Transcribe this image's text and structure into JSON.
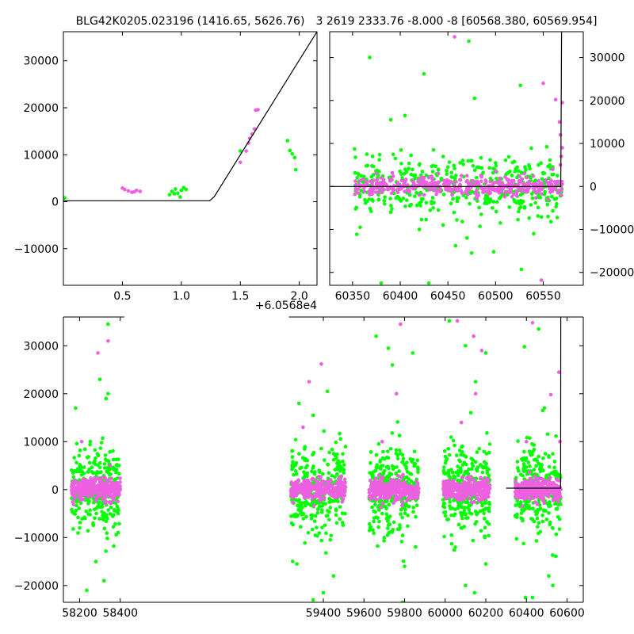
{
  "colors": {
    "green": "#00ff00",
    "magenta": "#ee5fe1",
    "model": "#000000"
  },
  "figure": {
    "title_left": "BLG42K0205.023196 (1416.65, 5626.76)",
    "title_right": "3 2619 2333.76 -8.000 -8 [60568.380, 60569.954]"
  },
  "chart_data": [
    {
      "id": "zoom-left",
      "type": "scatter",
      "title": "BLG42K0205.023196 (1416.65, 5626.76)",
      "xlim": [
        0.0,
        2.15
      ],
      "ylim": [
        -17800,
        36200
      ],
      "x_offset_label": "+6.0568e4",
      "x_ticks": [
        0.5,
        1.0,
        1.5,
        2.0
      ],
      "x_tick_labels": [
        "0.5",
        "1.0",
        "1.5",
        "2.0"
      ],
      "y_ticks": [
        -10000,
        0,
        10000,
        20000,
        30000
      ],
      "y_tick_labels": [
        "−10000",
        "0",
        "10000",
        "20000",
        "30000"
      ],
      "series": [
        {
          "color": "magenta",
          "points": [
            [
              0.5,
              2900
            ],
            [
              0.52,
              2600
            ],
            [
              0.55,
              2300
            ],
            [
              0.58,
              2000
            ],
            [
              0.6,
              2100
            ],
            [
              0.62,
              2400
            ],
            [
              0.65,
              2200
            ],
            [
              1.55,
              10800
            ],
            [
              1.57,
              12500
            ],
            [
              1.58,
              13500
            ],
            [
              1.6,
              14400
            ],
            [
              1.62,
              15500
            ],
            [
              1.63,
              19500
            ],
            [
              1.65,
              19600
            ],
            [
              1.5,
              8400
            ]
          ]
        },
        {
          "color": "green",
          "points": [
            [
              0.01,
              800
            ],
            [
              0.9,
              1500
            ],
            [
              0.92,
              2200
            ],
            [
              0.95,
              2700
            ],
            [
              0.97,
              1800
            ],
            [
              1.0,
              2400
            ],
            [
              1.02,
              3000
            ],
            [
              1.04,
              2600
            ],
            [
              0.99,
              1000
            ],
            [
              1.9,
              13000
            ],
            [
              1.92,
              10900
            ],
            [
              1.94,
              10200
            ],
            [
              1.96,
              9400
            ],
            [
              1.97,
              6800
            ],
            [
              1.5,
              10800
            ],
            [
              0.94,
              1700
            ]
          ]
        }
      ],
      "model": [
        [
          0.0,
          200
        ],
        [
          1.24,
          200
        ],
        [
          1.28,
          1100
        ],
        [
          2.15,
          36200
        ]
      ]
    },
    {
      "id": "season-right",
      "type": "scatter",
      "title": "3 2619 2333.76 -8.000 -8 [60568.380, 60569.954]",
      "xlim": [
        60326,
        60592
      ],
      "ylim": [
        -23000,
        36000
      ],
      "x_ticks": [
        60350,
        60400,
        60450,
        60500,
        60550
      ],
      "x_tick_labels": [
        "60350",
        "60400",
        "60450",
        "60500",
        "60550"
      ],
      "y_ticks": [
        -20000,
        -10000,
        0,
        10000,
        20000,
        30000
      ],
      "y_tick_labels": [
        "−20000",
        "−10000",
        "0",
        "10000",
        "20000",
        "30000"
      ],
      "y_axis_side": "right",
      "series": [
        {
          "color": "green",
          "points": [
            [
              60368,
              30000
            ],
            [
              60425,
              26200
            ],
            [
              60472,
              33800
            ],
            [
              60390,
              15500
            ],
            [
              60405,
              16500
            ],
            [
              60435,
              8500
            ],
            [
              60478,
              20500
            ],
            [
              60526,
              23500
            ],
            [
              60358,
              -9500
            ],
            [
              60380,
              -22500
            ],
            [
              60430,
              -22500
            ],
            [
              60458,
              -13800
            ],
            [
              60475,
              -15500
            ],
            [
              60498,
              -15200
            ],
            [
              60527,
              -19300
            ],
            [
              60540,
              -11000
            ],
            [
              60555,
              -7000
            ],
            [
              60420,
              -10000
            ],
            [
              60445,
              -9000
            ],
            [
              60390,
              -6000
            ],
            [
              60505,
              -8500
            ],
            [
              60470,
              -12000
            ],
            [
              60485,
              -6500
            ],
            [
              60365,
              -3500
            ],
            [
              60410,
              -4500
            ],
            [
              60440,
              -5500
            ],
            [
              60365,
              7500
            ],
            [
              60395,
              6500
            ],
            [
              60420,
              5000
            ],
            [
              60450,
              4500
            ],
            [
              60475,
              6000
            ],
            [
              60500,
              5500
            ],
            [
              60515,
              3500
            ],
            [
              60535,
              5000
            ],
            [
              60550,
              3000
            ],
            [
              60560,
              4500
            ],
            [
              60410,
              -2000
            ],
            [
              60460,
              -3000
            ],
            [
              60520,
              -3500
            ],
            [
              60545,
              -2500
            ]
          ]
        },
        {
          "color": "magenta",
          "points": [
            [
              60457,
              34800
            ],
            [
              60550,
              24000
            ],
            [
              60563,
              20200
            ],
            [
              60570,
              19500
            ],
            [
              60548,
              -21800
            ],
            [
              60567,
              15000
            ],
            [
              60568,
              12000
            ],
            [
              60570,
              9000
            ],
            [
              60569,
              7000
            ],
            [
              60568,
              5000
            ],
            [
              60440,
              3000
            ],
            [
              60470,
              2500
            ],
            [
              60500,
              3500
            ],
            [
              60530,
              3000
            ],
            [
              60560,
              4000
            ],
            [
              60380,
              2000
            ],
            [
              60420,
              -2000
            ],
            [
              60480,
              -2500
            ],
            [
              60510,
              -1500
            ],
            [
              60555,
              -3000
            ]
          ]
        }
      ],
      "band": {
        "x_start": 60352,
        "x_end": 60570,
        "spread": 2500
      },
      "model": [
        [
          60326,
          0
        ],
        [
          60568.4,
          0
        ],
        [
          60569.2,
          36000
        ]
      ]
    },
    {
      "id": "full-bottom",
      "type": "scatter",
      "xlim": [
        58120,
        60680
      ],
      "ylim": [
        -23500,
        36000
      ],
      "x_ticks": [
        58200,
        58400,
        59400,
        59600,
        59800,
        60000,
        60200,
        60400,
        60600
      ],
      "x_tick_labels": [
        "58200",
        "58400",
        "59400",
        "59600",
        "59800",
        "60000",
        "60200",
        "60400",
        "60600"
      ],
      "y_ticks": [
        -20000,
        -10000,
        0,
        10000,
        20000,
        30000
      ],
      "y_tick_labels": [
        "−20000",
        "−10000",
        "0",
        "10000",
        "20000",
        "30000"
      ],
      "break": [
        58420,
        59230
      ],
      "seasons": [
        [
          58160,
          58400
        ],
        [
          59240,
          59510
        ],
        [
          59625,
          59870
        ],
        [
          59990,
          60220
        ],
        [
          60345,
          60570
        ]
      ],
      "series": [
        {
          "color": "magenta",
          "points": [
            [
              58350,
              5000
            ],
            [
              58290,
              28500
            ],
            [
              58340,
              31000
            ],
            [
              58210,
              10000
            ],
            [
              59390,
              26200
            ],
            [
              59330,
              22500
            ],
            [
              59300,
              13000
            ],
            [
              59780,
              34500
            ],
            [
              59760,
              20000
            ],
            [
              59690,
              10000
            ],
            [
              60060,
              35200
            ],
            [
              60140,
              32000
            ],
            [
              60180,
              29000
            ],
            [
              60150,
              20000
            ],
            [
              60080,
              14000
            ],
            [
              60430,
              34800
            ],
            [
              60560,
              24500
            ],
            [
              60520,
              19800
            ],
            [
              60565,
              10000
            ],
            [
              60400,
              10000
            ]
          ]
        },
        {
          "color": "green",
          "points": [
            [
              58340,
              34500
            ],
            [
              58300,
              23000
            ],
            [
              58330,
              19000
            ],
            [
              58340,
              20000
            ],
            [
              58180,
              17000
            ],
            [
              58200,
              -8000
            ],
            [
              58235,
              -21000
            ],
            [
              58280,
              -15000
            ],
            [
              58320,
              -19000
            ],
            [
              59280,
              18000
            ],
            [
              59420,
              20500
            ],
            [
              59350,
              15500
            ],
            [
              59270,
              -15500
            ],
            [
              59350,
              -23000
            ],
            [
              59400,
              -21500
            ],
            [
              59450,
              -18000
            ],
            [
              59660,
              32000
            ],
            [
              59720,
              29500
            ],
            [
              59840,
              28500
            ],
            [
              59740,
              26000
            ],
            [
              59700,
              -10000
            ],
            [
              59800,
              -16000
            ],
            [
              59790,
              -23500
            ],
            [
              60020,
              35200
            ],
            [
              60100,
              30000
            ],
            [
              60200,
              28500
            ],
            [
              60150,
              22500
            ],
            [
              60050,
              -12000
            ],
            [
              60100,
              -20000
            ],
            [
              60145,
              -21500
            ],
            [
              60200,
              -15500
            ],
            [
              60390,
              29800
            ],
            [
              60460,
              33500
            ],
            [
              60480,
              16500
            ],
            [
              60395,
              -22500
            ],
            [
              60430,
              -22500
            ],
            [
              60510,
              -18000
            ],
            [
              60530,
              -20000
            ]
          ]
        }
      ],
      "model": [
        [
          60300,
          300
        ],
        [
          60568.4,
          300
        ],
        [
          60569.2,
          36000
        ]
      ]
    }
  ]
}
